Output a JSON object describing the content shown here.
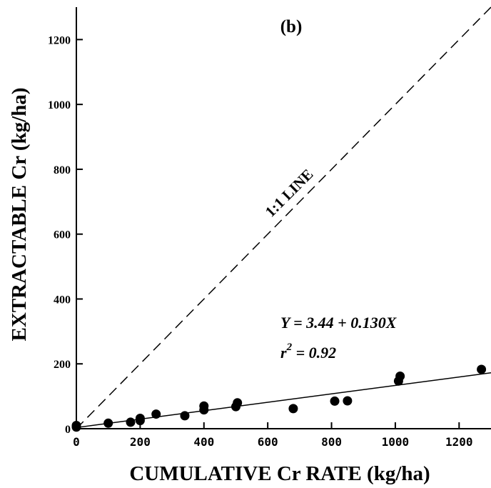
{
  "chart_data": {
    "type": "scatter",
    "panel_label": "(b)",
    "xlabel": "CUMULATIVE Cr RATE (kg/ha)",
    "ylabel": "EXTRACTABLE Cr (kg/ha)",
    "xlim": [
      0,
      1300
    ],
    "ylim": [
      0,
      1300
    ],
    "xticks": [
      0,
      200,
      400,
      600,
      800,
      1000,
      1200
    ],
    "yticks": [
      0,
      200,
      400,
      600,
      800,
      1000,
      1200
    ],
    "xtick_labels": [
      "0",
      "200",
      "400",
      "600",
      "800",
      "1000",
      "1200"
    ],
    "ytick_labels": [
      "0",
      "200",
      "400",
      "600",
      "800",
      "1000",
      "1200"
    ],
    "points": [
      {
        "x": 0,
        "y": 5
      },
      {
        "x": 0,
        "y": 10
      },
      {
        "x": 100,
        "y": 17
      },
      {
        "x": 170,
        "y": 20
      },
      {
        "x": 200,
        "y": 25
      },
      {
        "x": 200,
        "y": 32
      },
      {
        "x": 250,
        "y": 45
      },
      {
        "x": 340,
        "y": 40
      },
      {
        "x": 400,
        "y": 58
      },
      {
        "x": 400,
        "y": 70
      },
      {
        "x": 500,
        "y": 68
      },
      {
        "x": 505,
        "y": 80
      },
      {
        "x": 680,
        "y": 62
      },
      {
        "x": 810,
        "y": 85
      },
      {
        "x": 850,
        "y": 86
      },
      {
        "x": 1010,
        "y": 147
      },
      {
        "x": 1015,
        "y": 162
      },
      {
        "x": 1270,
        "y": 183
      }
    ],
    "regression": {
      "intercept": 3.44,
      "slope": 0.13,
      "equation": "Y = 3.44 + 0.130X",
      "r2_prefix": "r",
      "r2_superscript": "2",
      "r2_value": " = 0.92"
    },
    "reference_line": {
      "label": "1:1 LINE",
      "slope": 1,
      "style": "dashed"
    },
    "grid": false,
    "marker_color": "#000000",
    "line_color": "#000000"
  }
}
